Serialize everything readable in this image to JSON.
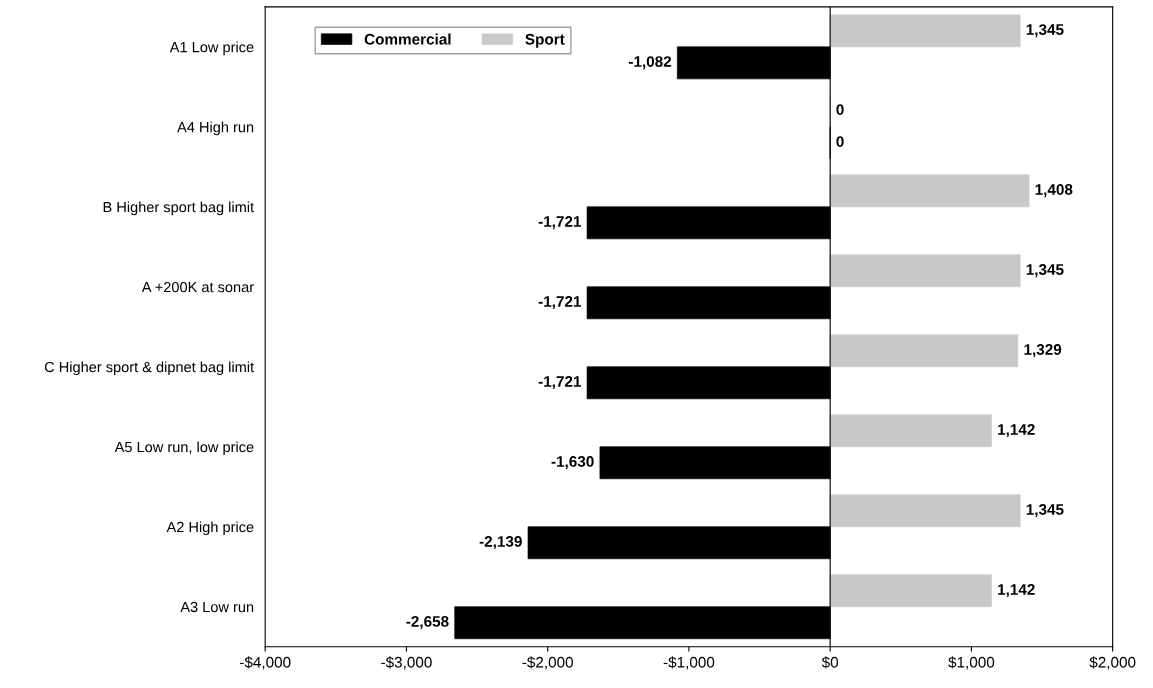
{
  "chart_data": {
    "type": "bar",
    "orientation": "horizontal",
    "categories": [
      "A1 Low price",
      "A4 High run",
      "B Higher sport bag limit",
      "A +200K at sonar",
      "C Higher sport & dipnet bag limit",
      "A5 Low run, low price",
      "A2 High price",
      "A3 Low run"
    ],
    "series": [
      {
        "name": "Commercial",
        "color": "#000000",
        "values": [
          -1082,
          0,
          -1721,
          -1721,
          -1721,
          -1630,
          -2139,
          -2658
        ],
        "value_labels": [
          "-1,082",
          "0",
          "-1,721",
          "-1,721",
          "-1,721",
          "-1,630",
          "-2,139",
          "-2,658"
        ]
      },
      {
        "name": "Sport",
        "color": "#c8c8c8",
        "values": [
          1345,
          0,
          1408,
          1345,
          1329,
          1142,
          1345,
          1142
        ],
        "value_labels": [
          "1,345",
          "0",
          "1,408",
          "1,345",
          "1,329",
          "1,142",
          "1,345",
          "1,142"
        ]
      }
    ],
    "xlim": [
      -4000,
      2000
    ],
    "xticks": [
      {
        "value": -4000,
        "label": "-$4,000"
      },
      {
        "value": -3000,
        "label": "-$3,000"
      },
      {
        "value": -2000,
        "label": "-$2,000"
      },
      {
        "value": -1000,
        "label": "-$1,000"
      },
      {
        "value": 0,
        "label": "$0"
      },
      {
        "value": 1000,
        "label": "$1,000"
      },
      {
        "value": 2000,
        "label": "$2,000"
      }
    ],
    "ref_lines": [
      {
        "axis": "x",
        "value": 0,
        "color": "#000000"
      }
    ],
    "grid": false,
    "legend": "top left"
  }
}
